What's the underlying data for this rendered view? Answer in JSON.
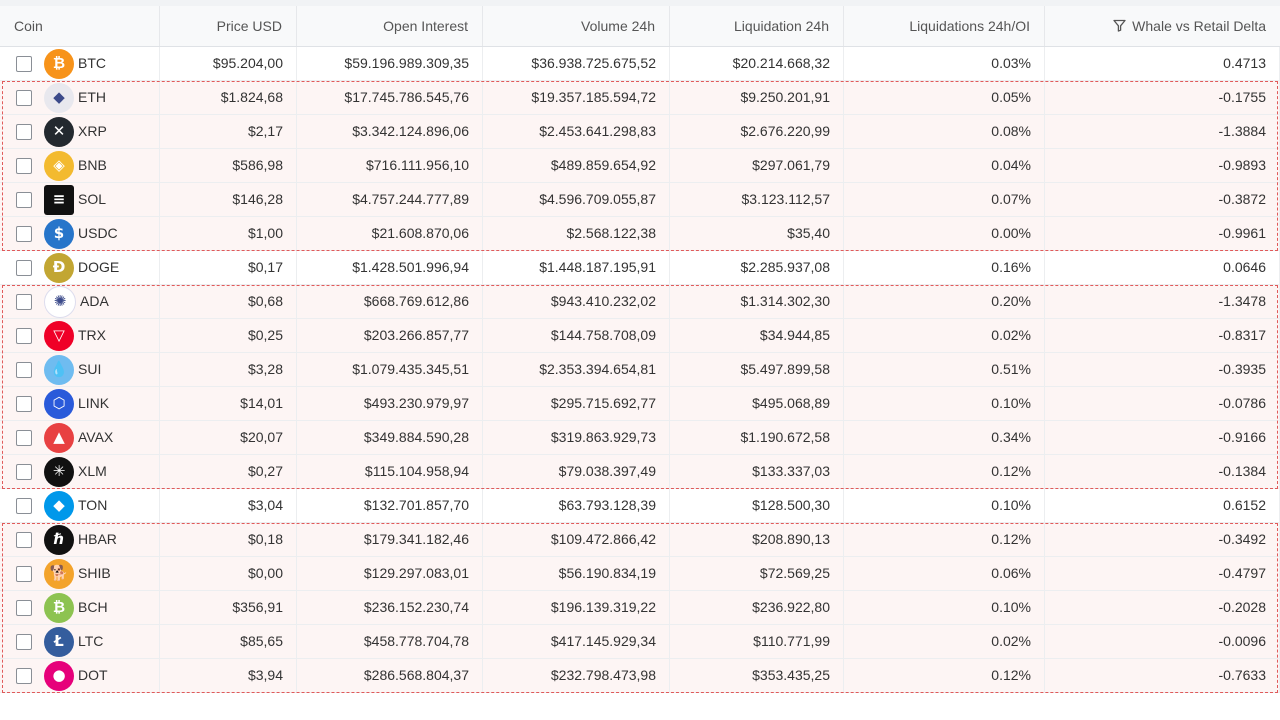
{
  "columns": {
    "coin": "Coin",
    "price": "Price USD",
    "oi": "Open Interest",
    "volume": "Volume 24h",
    "liq": "Liquidation 24h",
    "liq_oi": "Liquidations 24h/OI",
    "delta": "Whale vs Retail Delta"
  },
  "rows": [
    {
      "sym": "BTC",
      "price": "$95.204,00",
      "oi": "$59.196.989.309,35",
      "vol": "$36.938.725.675,52",
      "liq": "$20.214.668,32",
      "liq_oi": "0.03%",
      "delta": "0.4713",
      "icon": "bitcoin-icon",
      "color": "#f7931a",
      "glyph": "₿"
    },
    {
      "sym": "ETH",
      "price": "$1.824,68",
      "oi": "$17.745.786.545,76",
      "vol": "$19.357.185.594,72",
      "liq": "$9.250.201,91",
      "liq_oi": "0.05%",
      "delta": "-0.1755",
      "icon": "ethereum-icon",
      "color": "#e8e8ee",
      "glyph": "◆"
    },
    {
      "sym": "XRP",
      "price": "$2,17",
      "oi": "$3.342.124.896,06",
      "vol": "$2.453.641.298,83",
      "liq": "$2.676.220,99",
      "liq_oi": "0.08%",
      "delta": "-1.3884",
      "icon": "xrp-icon",
      "color": "#23292f",
      "glyph": "✕"
    },
    {
      "sym": "BNB",
      "price": "$586,98",
      "oi": "$716.111.956,10",
      "vol": "$489.859.654,92",
      "liq": "$297.061,79",
      "liq_oi": "0.04%",
      "delta": "-0.9893",
      "icon": "bnb-icon",
      "color": "#f3ba2f",
      "glyph": "◈"
    },
    {
      "sym": "SOL",
      "price": "$146,28",
      "oi": "$4.757.244.777,89",
      "vol": "$4.596.709.055,87",
      "liq": "$3.123.112,57",
      "liq_oi": "0.07%",
      "delta": "-0.3872",
      "icon": "solana-icon",
      "color": "#111111",
      "glyph": "≡"
    },
    {
      "sym": "USDC",
      "price": "$1,00",
      "oi": "$21.608.870,06",
      "vol": "$2.568.122,38",
      "liq": "$35,40",
      "liq_oi": "0.00%",
      "delta": "-0.9961",
      "icon": "usdc-icon",
      "color": "#2775ca",
      "glyph": "$"
    },
    {
      "sym": "DOGE",
      "price": "$0,17",
      "oi": "$1.428.501.996,94",
      "vol": "$1.448.187.195,91",
      "liq": "$2.285.937,08",
      "liq_oi": "0.16%",
      "delta": "0.0646",
      "icon": "dogecoin-icon",
      "color": "#c2a633",
      "glyph": "Ð"
    },
    {
      "sym": "ADA",
      "price": "$0,68",
      "oi": "$668.769.612,86",
      "vol": "$943.410.232,02",
      "liq": "$1.314.302,30",
      "liq_oi": "0.20%",
      "delta": "-1.3478",
      "icon": "cardano-icon",
      "color": "#ffffff",
      "glyph": "✺"
    },
    {
      "sym": "TRX",
      "price": "$0,25",
      "oi": "$203.266.857,77",
      "vol": "$144.758.708,09",
      "liq": "$34.944,85",
      "liq_oi": "0.02%",
      "delta": "-0.8317",
      "icon": "tron-icon",
      "color": "#ef0027",
      "glyph": "▽"
    },
    {
      "sym": "SUI",
      "price": "$3,28",
      "oi": "$1.079.435.345,51",
      "vol": "$2.353.394.654,81",
      "liq": "$5.497.899,58",
      "liq_oi": "0.51%",
      "delta": "-0.3935",
      "icon": "sui-icon",
      "color": "#6fbcf0",
      "glyph": "💧"
    },
    {
      "sym": "LINK",
      "price": "$14,01",
      "oi": "$493.230.979,97",
      "vol": "$295.715.692,77",
      "liq": "$495.068,89",
      "liq_oi": "0.10%",
      "delta": "-0.0786",
      "icon": "chainlink-icon",
      "color": "#2a5ada",
      "glyph": "⬡"
    },
    {
      "sym": "AVAX",
      "price": "$20,07",
      "oi": "$349.884.590,28",
      "vol": "$319.863.929,73",
      "liq": "$1.190.672,58",
      "liq_oi": "0.34%",
      "delta": "-0.9166",
      "icon": "avalanche-icon",
      "color": "#e84142",
      "glyph": "▲"
    },
    {
      "sym": "XLM",
      "price": "$0,27",
      "oi": "$115.104.958,94",
      "vol": "$79.038.397,49",
      "liq": "$133.337,03",
      "liq_oi": "0.12%",
      "delta": "-0.1384",
      "icon": "stellar-icon",
      "color": "#111111",
      "glyph": "✳"
    },
    {
      "sym": "TON",
      "price": "$3,04",
      "oi": "$132.701.857,70",
      "vol": "$63.793.128,39",
      "liq": "$128.500,30",
      "liq_oi": "0.10%",
      "delta": "0.6152",
      "icon": "ton-icon",
      "color": "#0098ea",
      "glyph": "◆"
    },
    {
      "sym": "HBAR",
      "price": "$0,18",
      "oi": "$179.341.182,46",
      "vol": "$109.472.866,42",
      "liq": "$208.890,13",
      "liq_oi": "0.12%",
      "delta": "-0.3492",
      "icon": "hedera-icon",
      "color": "#111111",
      "glyph": "ℏ"
    },
    {
      "sym": "SHIB",
      "price": "$0,00",
      "oi": "$129.297.083,01",
      "vol": "$56.190.834,19",
      "liq": "$72.569,25",
      "liq_oi": "0.06%",
      "delta": "-0.4797",
      "icon": "shiba-icon",
      "color": "#f3a32b",
      "glyph": "🐕"
    },
    {
      "sym": "BCH",
      "price": "$356,91",
      "oi": "$236.152.230,74",
      "vol": "$196.139.319,22",
      "liq": "$236.922,80",
      "liq_oi": "0.10%",
      "delta": "-0.2028",
      "icon": "bitcoin-cash-icon",
      "color": "#8dc351",
      "glyph": "₿"
    },
    {
      "sym": "LTC",
      "price": "$85,65",
      "oi": "$458.778.704,78",
      "vol": "$417.145.929,34",
      "liq": "$110.771,99",
      "liq_oi": "0.02%",
      "delta": "-0.0096",
      "icon": "litecoin-icon",
      "color": "#345d9d",
      "glyph": "Ł"
    },
    {
      "sym": "DOT",
      "price": "$3,94",
      "oi": "$286.568.804,37",
      "vol": "$232.798.473,98",
      "liq": "$353.435,25",
      "liq_oi": "0.12%",
      "delta": "-0.7633",
      "icon": "polkadot-icon",
      "color": "#e6007a",
      "glyph": "●"
    }
  ],
  "highlight_rows": [
    1,
    2,
    3,
    4,
    5,
    7,
    8,
    9,
    10,
    11,
    12,
    14,
    15,
    16,
    17,
    18
  ],
  "accent": "#e05a5a"
}
